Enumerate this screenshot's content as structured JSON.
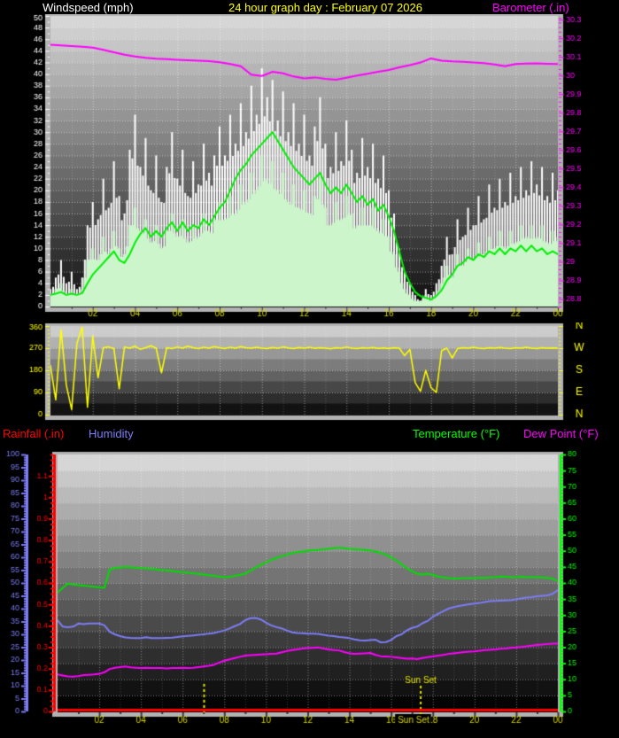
{
  "header": {
    "windspeed_label": "Windspeed (mph)",
    "title": "24 hour graph day : February 07 2026",
    "barometer_label": "Barometer (.in)"
  },
  "legend": {
    "rainfall_label": "Rainfall (.in)",
    "humidity_label": "Humidity",
    "temperature_label": "Temperature (°F)",
    "dewpoint_label": "Dew Point (°F)"
  },
  "colors": {
    "background": "#000000",
    "windspeed_label": "#ffffff",
    "title": "#ffff00",
    "barometer": "#ff00ff",
    "rainfall": "#ff0000",
    "humidity": "#7d7df5",
    "temperature": "#00ff00",
    "dew_point": "#ff00ff",
    "wind_gust": "#ffffff",
    "wind_avg_fill": "#ccf5cc",
    "wind_avg_line": "#00ee00",
    "wind_direction": "#ffff00",
    "hour_labels": "#d6d600",
    "frame": "#b2b2b2"
  },
  "chart_data": [
    {
      "type": "line",
      "name": "windspeed_and_barometer",
      "x_labels": [
        "02",
        "04",
        "06",
        "08",
        "10",
        "12",
        "14",
        "16",
        "18",
        "20",
        "22",
        "00"
      ],
      "x_range_hours": [
        0,
        24
      ],
      "y_left": {
        "min": 0,
        "max": 50,
        "tick": 2,
        "color": "#ffffff"
      },
      "y_right": {
        "min": 28.76,
        "max": 30.32,
        "tick_labels": [
          "30.3",
          "30.2",
          "30.1",
          "30",
          "29.9",
          "29.8",
          "29.7",
          "29.6",
          "29.5",
          "29.4",
          "29.3",
          "29.2",
          "29.1",
          "29",
          "28.9",
          "28.8"
        ],
        "color": "#ff00ff"
      },
      "series": [
        {
          "name": "wind_gust",
          "render": "bars",
          "axis": "left",
          "color": "#ffffff",
          "t_step": 0.25,
          "values": [
            3,
            5,
            8,
            4,
            6,
            3,
            5,
            14,
            18,
            15,
            22,
            17,
            25,
            19,
            16,
            27,
            33,
            24,
            29,
            20,
            26,
            18,
            24,
            30,
            22,
            27,
            19,
            25,
            21,
            28,
            23,
            26,
            31,
            26,
            33,
            28,
            35,
            30,
            38,
            33,
            41,
            36,
            39,
            32,
            37,
            30,
            35,
            28,
            33,
            26,
            31,
            36,
            28,
            24,
            30,
            25,
            32,
            27,
            23,
            29,
            24,
            28,
            22,
            26,
            20,
            16,
            10,
            6,
            4,
            2,
            1,
            3,
            2,
            4,
            7,
            12,
            9,
            15,
            12,
            17,
            14,
            19,
            15,
            21,
            17,
            22,
            18,
            23,
            19,
            24,
            20,
            25,
            21,
            24,
            19,
            23,
            20
          ]
        },
        {
          "name": "wind_avg",
          "render": "bars",
          "axis": "left",
          "color": "#ccf5cc",
          "t_step": 0.25,
          "values": [
            2,
            3,
            4,
            2,
            3,
            2,
            3,
            8,
            10,
            8,
            12,
            9,
            13,
            10,
            9,
            14,
            17,
            13,
            15,
            11,
            14,
            10,
            13,
            16,
            12,
            15,
            11,
            14,
            12,
            16,
            13,
            15,
            18,
            15,
            19,
            16,
            21,
            18,
            23,
            20,
            26,
            22,
            25,
            20,
            23,
            18,
            21,
            17,
            20,
            16,
            19,
            22,
            17,
            14,
            18,
            15,
            19,
            16,
            14,
            17,
            14,
            17,
            13,
            15,
            12,
            9,
            6,
            3,
            2,
            1,
            1,
            2,
            1,
            2,
            4,
            7,
            5,
            9,
            7,
            10,
            8,
            11,
            9,
            12,
            10,
            13,
            10,
            13,
            11,
            14,
            12,
            14,
            12,
            14,
            11,
            13,
            12
          ]
        },
        {
          "name": "wind_avg_trend",
          "render": "line",
          "axis": "left",
          "color": "#00ee00",
          "t_step": 0.25,
          "values": [
            2,
            2.2,
            2.5,
            2,
            2.2,
            2,
            2.3,
            4,
            5.5,
            6.5,
            7.5,
            8.5,
            9.5,
            8,
            7.5,
            9,
            11,
            12.5,
            13.5,
            12,
            13,
            12,
            13.5,
            14.5,
            13,
            14.5,
            13,
            14,
            13.5,
            15,
            14,
            15.5,
            17,
            18,
            20,
            22,
            23.5,
            24.5,
            26,
            27,
            28,
            29,
            30,
            28.5,
            27,
            25.5,
            24,
            23,
            22,
            21,
            22,
            23,
            21,
            19.5,
            20.5,
            19.5,
            21,
            19.5,
            18,
            19,
            17.5,
            18.5,
            16.5,
            17.5,
            15.5,
            13,
            9.5,
            6,
            4,
            2.5,
            1.8,
            1.5,
            1.2,
            1.8,
            2.8,
            4.5,
            5.5,
            7,
            7.5,
            8.5,
            8,
            9,
            8.5,
            9.5,
            9,
            10,
            9,
            10,
            9.5,
            10.5,
            9.5,
            10.5,
            9.5,
            10,
            9,
            9.5,
            9
          ]
        },
        {
          "name": "barometer",
          "render": "line",
          "axis": "right",
          "color": "#ff00ff",
          "t_step": 0.5,
          "values": [
            30.165,
            30.162,
            30.158,
            30.155,
            30.15,
            30.138,
            30.125,
            30.112,
            30.102,
            30.095,
            30.09,
            30.088,
            30.085,
            30.082,
            30.08,
            30.078,
            30.072,
            30.062,
            30.05,
            30.005,
            29.998,
            30.02,
            30.012,
            29.995,
            29.985,
            29.99,
            29.982,
            29.978,
            29.988,
            30,
            30.01,
            30.02,
            30.03,
            30.044,
            30.056,
            30.07,
            30.092,
            30.08,
            30.076,
            30.074,
            30.07,
            30.067,
            30.06,
            30.05,
            30.062,
            30.064,
            30.065,
            30.063,
            30.062
          ]
        }
      ]
    },
    {
      "type": "line",
      "name": "wind_direction",
      "y_left": {
        "min": 0,
        "max": 360,
        "labeled_ticks": [
          360,
          270,
          180,
          90,
          0
        ],
        "color": "#ffff00"
      },
      "y_right_letters": [
        "N",
        "W",
        "S",
        "E",
        "N"
      ],
      "series": [
        {
          "name": "direction_degrees",
          "render": "line",
          "color": "#ffff00",
          "t_step": 0.25,
          "values": [
            200,
            60,
            345,
            120,
            20,
            290,
            355,
            30,
            320,
            150,
            272,
            275,
            268,
            105,
            275,
            270,
            278,
            265,
            272,
            280,
            270,
            170,
            272,
            268,
            275,
            270,
            278,
            272,
            268,
            274,
            270,
            276,
            272,
            268,
            274,
            270,
            276,
            272,
            270,
            274,
            270,
            268,
            273,
            270,
            275,
            271,
            268,
            273,
            270,
            274,
            269,
            272,
            270,
            267,
            272,
            270,
            275,
            270,
            268,
            272,
            270,
            273,
            269,
            271,
            268,
            272,
            270,
            240,
            265,
            130,
            95,
            180,
            110,
            90,
            260,
            270,
            230,
            268,
            272,
            270,
            274,
            270,
            268,
            272,
            270,
            273,
            270,
            268,
            272,
            270,
            274,
            270,
            268,
            272,
            270,
            271,
            270
          ]
        }
      ]
    },
    {
      "type": "line",
      "name": "temperature_humidity_rainfall",
      "x_labels": [
        "02",
        "04",
        "06",
        "08",
        "10",
        "12",
        "14",
        "16",
        "18",
        "20",
        "22",
        "00"
      ],
      "x_range_hours": [
        0,
        24
      ],
      "y_humidity": {
        "min": 0,
        "max": 100,
        "tick": 5,
        "color": "#7d7df5"
      },
      "y_rainfall": {
        "min": 0,
        "max": 1.2,
        "tick_labels": [
          "1.1",
          "1",
          "0.9",
          "0.8",
          "0.7",
          "0.6",
          "0.5",
          "0.4",
          "0.3",
          "0.2",
          "0.1",
          "0"
        ],
        "color": "#ff0000"
      },
      "y_temperature": {
        "min": 0,
        "max": 80,
        "tick": 5,
        "color": "#00ff00"
      },
      "annotations": {
        "sunrise_time": 7.03,
        "sunset_time": 17.42,
        "sunset_label": "Sun Set"
      },
      "series": [
        {
          "name": "temperature",
          "render": "line",
          "axis": "temperature",
          "color": "#00dd00",
          "t_step": 0.25,
          "values": [
            37,
            38.5,
            39.8,
            39.5,
            39.3,
            39.2,
            39,
            38.8,
            38.6,
            38.5,
            44.2,
            44.6,
            44.8,
            45,
            44.9,
            44.7,
            44.6,
            44.5,
            44.4,
            44.2,
            44,
            43.9,
            43.7,
            43.5,
            43.4,
            43.2,
            43,
            42.8,
            42.6,
            42.4,
            42.2,
            42,
            41.8,
            41.9,
            42.2,
            42.5,
            42.9,
            43.8,
            44.8,
            45.6,
            46.4,
            47.2,
            47.8,
            48.3,
            48.8,
            49.3,
            49.6,
            49.8,
            50,
            50.2,
            50.3,
            50.5,
            50.6,
            50.8,
            51,
            50.8,
            50.6,
            50.5,
            50.4,
            50.3,
            50.1,
            49.8,
            49.4,
            48.8,
            48,
            47,
            45.8,
            44.6,
            43.6,
            42.9,
            42.6,
            42.9,
            42.5,
            42,
            41.7,
            41.5,
            41.4,
            41.4,
            41.5,
            41.5,
            41.5,
            41.6,
            41.6,
            41.7,
            41.8,
            42,
            41.9,
            41.8,
            41.8,
            41.9,
            41.8,
            41.8,
            41.8,
            41.7,
            41.6,
            41.3,
            40.6
          ]
        },
        {
          "name": "humidity",
          "render": "line",
          "axis": "humidity",
          "color": "#7d7df5",
          "t_step": 0.25,
          "values": [
            35.5,
            33,
            32.8,
            33,
            34.2,
            34,
            34.2,
            34.2,
            34.2,
            33.5,
            31,
            30,
            29.3,
            28.8,
            28.6,
            28.5,
            28.5,
            28.9,
            28.5,
            28.5,
            28.5,
            28.6,
            28.7,
            29,
            29.2,
            29.4,
            29.6,
            29.8,
            30,
            30.3,
            30.5,
            31,
            31.5,
            32.3,
            33.2,
            34,
            35.5,
            36.3,
            36.4,
            35.8,
            34.5,
            33.5,
            32.8,
            32.3,
            31.5,
            30.8,
            30.5,
            30.4,
            30.3,
            30.3,
            30.2,
            29.8,
            29.5,
            29.3,
            29,
            28.8,
            28.5,
            28,
            27.7,
            27.6,
            27.8,
            27.9,
            26.9,
            27,
            27.8,
            29.3,
            30,
            31.5,
            32.5,
            33,
            34.3,
            35.2,
            36.8,
            38,
            39,
            40,
            40.6,
            41,
            41.4,
            41.7,
            42,
            42.2,
            42.6,
            42.9,
            43,
            43.1,
            43.2,
            43.3,
            43.6,
            44,
            44.3,
            44.5,
            44.8,
            45,
            45.2,
            45.8,
            47.2
          ]
        },
        {
          "name": "dew_point",
          "render": "line",
          "axis": "temperature",
          "color": "#ff00ff",
          "t_step": 0.25,
          "values": [
            11.5,
            11.2,
            10.9,
            10.8,
            11,
            11.3,
            11.4,
            11.5,
            11.7,
            12.2,
            13.2,
            13.6,
            13.8,
            14,
            13.7,
            13.6,
            13.5,
            13.6,
            13.5,
            13.5,
            13.5,
            13.4,
            13.5,
            13.5,
            13.6,
            13.5,
            13.6,
            13.8,
            14,
            14.2,
            14.5,
            15.2,
            15.8,
            16.2,
            16.6,
            17,
            17.4,
            17.5,
            17.6,
            17.7,
            17.8,
            17.9,
            18,
            18.4,
            18.8,
            19.1,
            19.3,
            19.6,
            19.7,
            19.8,
            19.9,
            19.6,
            19.3,
            19.1,
            19,
            18.5,
            18.1,
            17.9,
            18,
            18.1,
            18.2,
            17.6,
            17.2,
            17.1,
            17,
            16.8,
            16.6,
            16.4,
            16.5,
            16.3,
            16.6,
            16.9,
            17.1,
            17.4,
            17.6,
            17.9,
            18.1,
            18.3,
            18.5,
            18.6,
            18.7,
            18.9,
            19.1,
            19.2,
            19.3,
            19.5,
            19.6,
            19.8,
            19.9,
            20.1,
            20.3,
            20.5,
            20.7,
            20.8,
            21,
            21.1,
            21.2
          ]
        },
        {
          "name": "rainfall",
          "render": "line",
          "axis": "rainfall",
          "color": "#ff0000",
          "t_step": 12,
          "values": [
            0,
            0,
            0
          ]
        }
      ]
    }
  ]
}
